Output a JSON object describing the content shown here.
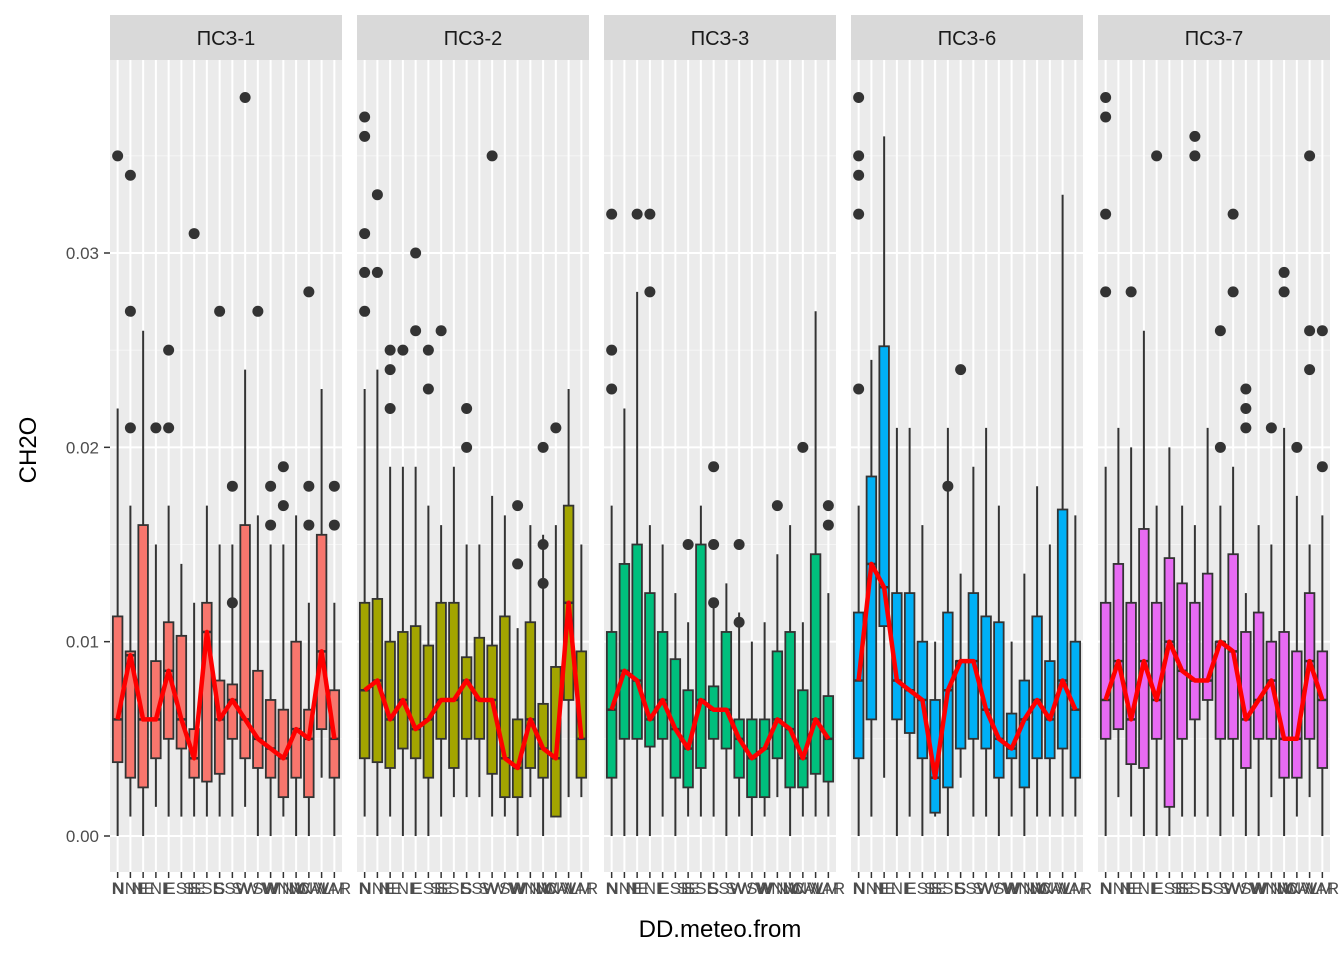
{
  "chart_data": {
    "type": "boxplot",
    "title": "",
    "xlabel": "DD.meteo.from",
    "ylabel": "CH2O",
    "ylim": [
      -0.0018,
      0.0397
    ],
    "yticks": [
      0.0,
      0.01,
      0.02,
      0.03
    ],
    "ytick_labels": [
      "0.00",
      "0.01",
      "0.02",
      "0.03"
    ],
    "grid": true,
    "legend": "none",
    "overlay": "red line connecting medians per category",
    "line_color": "#ff0000",
    "categories": [
      "N",
      "NNE",
      "NE",
      "ENE",
      "E",
      "ESE",
      "SE",
      "SSE",
      "S",
      "SSW",
      "SW",
      "WSW",
      "W",
      "WNW",
      "NW",
      "NNW",
      "CALM",
      "VAR"
    ],
    "facets": [
      {
        "name": "ПСЗ-1",
        "fill": "#F8766D",
        "boxes": [
          {
            "lo": 0.0,
            "q1": 0.0038,
            "med": 0.006,
            "q3": 0.0113,
            "hi": 0.022,
            "out": [
              0.035
            ]
          },
          {
            "lo": 0.001,
            "q1": 0.003,
            "med": 0.0093,
            "q3": 0.0095,
            "hi": 0.017,
            "out": [
              0.034,
              0.027,
              0.021
            ]
          },
          {
            "lo": 0.0,
            "q1": 0.0025,
            "med": 0.006,
            "q3": 0.016,
            "hi": 0.026,
            "out": []
          },
          {
            "lo": 0.0015,
            "q1": 0.004,
            "med": 0.006,
            "q3": 0.009,
            "hi": 0.015,
            "out": [
              0.021
            ]
          },
          {
            "lo": 0.001,
            "q1": 0.005,
            "med": 0.0085,
            "q3": 0.011,
            "hi": 0.017,
            "out": [
              0.025,
              0.021
            ]
          },
          {
            "lo": 0.001,
            "q1": 0.0045,
            "med": 0.006,
            "q3": 0.0103,
            "hi": 0.014,
            "out": []
          },
          {
            "lo": 0.001,
            "q1": 0.003,
            "med": 0.004,
            "q3": 0.0055,
            "hi": 0.012,
            "out": [
              0.031
            ]
          },
          {
            "lo": 0.001,
            "q1": 0.0028,
            "med": 0.0105,
            "q3": 0.012,
            "hi": 0.017,
            "out": []
          },
          {
            "lo": 0.001,
            "q1": 0.0032,
            "med": 0.006,
            "q3": 0.008,
            "hi": 0.015,
            "out": [
              0.027
            ]
          },
          {
            "lo": 0.001,
            "q1": 0.005,
            "med": 0.007,
            "q3": 0.0078,
            "hi": 0.015,
            "out": [
              0.018,
              0.012
            ]
          },
          {
            "lo": 0.0015,
            "q1": 0.004,
            "med": 0.006,
            "q3": 0.016,
            "hi": 0.024,
            "out": [
              0.038
            ]
          },
          {
            "lo": 0.0,
            "q1": 0.0035,
            "med": 0.005,
            "q3": 0.0085,
            "hi": 0.0165,
            "out": [
              0.027
            ]
          },
          {
            "lo": 0.0,
            "q1": 0.003,
            "med": 0.0045,
            "q3": 0.007,
            "hi": 0.015,
            "out": [
              0.018,
              0.016
            ]
          },
          {
            "lo": 0.001,
            "q1": 0.002,
            "med": 0.004,
            "q3": 0.0065,
            "hi": 0.015,
            "out": [
              0.019,
              0.017
            ]
          },
          {
            "lo": 0.0,
            "q1": 0.003,
            "med": 0.0055,
            "q3": 0.01,
            "hi": 0.0165,
            "out": []
          },
          {
            "lo": 0.0,
            "q1": 0.002,
            "med": 0.005,
            "q3": 0.0065,
            "hi": 0.012,
            "out": [
              0.028,
              0.018,
              0.016
            ]
          },
          {
            "lo": 0.003,
            "q1": 0.0055,
            "med": 0.0095,
            "q3": 0.0155,
            "hi": 0.023,
            "out": []
          },
          {
            "lo": 0.0,
            "q1": 0.003,
            "med": 0.005,
            "q3": 0.0075,
            "hi": 0.012,
            "out": [
              0.018,
              0.016
            ]
          }
        ]
      },
      {
        "name": "ПСЗ-2",
        "fill": "#A3A500",
        "boxes": [
          {
            "lo": 0.001,
            "q1": 0.004,
            "med": 0.0075,
            "q3": 0.012,
            "hi": 0.023,
            "out": [
              0.037,
              0.036,
              0.031,
              0.029,
              0.027
            ]
          },
          {
            "lo": 0.0,
            "q1": 0.0038,
            "med": 0.008,
            "q3": 0.0122,
            "hi": 0.024,
            "out": [
              0.033,
              0.029
            ]
          },
          {
            "lo": 0.001,
            "q1": 0.0035,
            "med": 0.006,
            "q3": 0.01,
            "hi": 0.019,
            "out": [
              0.025,
              0.024,
              0.022
            ]
          },
          {
            "lo": 0.0,
            "q1": 0.0045,
            "med": 0.007,
            "q3": 0.0105,
            "hi": 0.019,
            "out": [
              0.025
            ]
          },
          {
            "lo": 0.0,
            "q1": 0.004,
            "med": 0.0055,
            "q3": 0.0108,
            "hi": 0.019,
            "out": [
              0.03,
              0.026
            ]
          },
          {
            "lo": 0.0,
            "q1": 0.003,
            "med": 0.006,
            "q3": 0.0098,
            "hi": 0.017,
            "out": [
              0.025,
              0.023
            ]
          },
          {
            "lo": 0.001,
            "q1": 0.005,
            "med": 0.007,
            "q3": 0.012,
            "hi": 0.016,
            "out": [
              0.026
            ]
          },
          {
            "lo": 0.002,
            "q1": 0.0035,
            "med": 0.007,
            "q3": 0.012,
            "hi": 0.019,
            "out": []
          },
          {
            "lo": 0.002,
            "q1": 0.005,
            "med": 0.008,
            "q3": 0.0092,
            "hi": 0.015,
            "out": [
              0.022,
              0.02
            ]
          },
          {
            "lo": 0.002,
            "q1": 0.005,
            "med": 0.007,
            "q3": 0.0102,
            "hi": 0.015,
            "out": []
          },
          {
            "lo": 0.001,
            "q1": 0.0032,
            "med": 0.007,
            "q3": 0.0098,
            "hi": 0.0175,
            "out": [
              0.035
            ]
          },
          {
            "lo": 0.001,
            "q1": 0.002,
            "med": 0.004,
            "q3": 0.0113,
            "hi": 0.0165,
            "out": []
          },
          {
            "lo": 0.0,
            "q1": 0.002,
            "med": 0.0035,
            "q3": 0.006,
            "hi": 0.0107,
            "out": [
              0.017,
              0.014
            ]
          },
          {
            "lo": 0.002,
            "q1": 0.0035,
            "med": 0.006,
            "q3": 0.011,
            "hi": 0.016,
            "out": []
          },
          {
            "lo": 0.0,
            "q1": 0.003,
            "med": 0.0045,
            "q3": 0.0068,
            "hi": 0.0155,
            "out": [
              0.02,
              0.015,
              0.013
            ]
          },
          {
            "lo": 0.001,
            "q1": 0.001,
            "med": 0.004,
            "q3": 0.0087,
            "hi": 0.016,
            "out": [
              0.021
            ]
          },
          {
            "lo": 0.002,
            "q1": 0.007,
            "med": 0.012,
            "q3": 0.017,
            "hi": 0.023,
            "out": []
          },
          {
            "lo": 0.002,
            "q1": 0.003,
            "med": 0.005,
            "q3": 0.0095,
            "hi": 0.015,
            "out": []
          }
        ]
      },
      {
        "name": "ПСЗ-3",
        "fill": "#00BF7D",
        "boxes": [
          {
            "lo": 0.0,
            "q1": 0.003,
            "med": 0.0065,
            "q3": 0.0105,
            "hi": 0.017,
            "out": [
              0.032,
              0.025,
              0.023
            ]
          },
          {
            "lo": 0.0,
            "q1": 0.005,
            "med": 0.0085,
            "q3": 0.014,
            "hi": 0.022,
            "out": []
          },
          {
            "lo": 0.0,
            "q1": 0.005,
            "med": 0.008,
            "q3": 0.015,
            "hi": 0.028,
            "out": [
              0.032
            ]
          },
          {
            "lo": 0.0,
            "q1": 0.0046,
            "med": 0.006,
            "q3": 0.0125,
            "hi": 0.016,
            "out": [
              0.032,
              0.028
            ]
          },
          {
            "lo": 0.001,
            "q1": 0.005,
            "med": 0.007,
            "q3": 0.0105,
            "hi": 0.015,
            "out": []
          },
          {
            "lo": 0.0,
            "q1": 0.003,
            "med": 0.0055,
            "q3": 0.0091,
            "hi": 0.0125,
            "out": []
          },
          {
            "lo": 0.001,
            "q1": 0.0025,
            "med": 0.0045,
            "q3": 0.0075,
            "hi": 0.011,
            "out": [
              0.015
            ]
          },
          {
            "lo": 0.001,
            "q1": 0.0035,
            "med": 0.007,
            "q3": 0.015,
            "hi": 0.017,
            "out": []
          },
          {
            "lo": 0.001,
            "q1": 0.005,
            "med": 0.0065,
            "q3": 0.0077,
            "hi": 0.012,
            "out": [
              0.019,
              0.015,
              0.012
            ]
          },
          {
            "lo": 0.0,
            "q1": 0.0045,
            "med": 0.0065,
            "q3": 0.0105,
            "hi": 0.013,
            "out": []
          },
          {
            "lo": 0.001,
            "q1": 0.003,
            "med": 0.005,
            "q3": 0.006,
            "hi": 0.0115,
            "out": [
              0.015,
              0.011
            ]
          },
          {
            "lo": 0.0,
            "q1": 0.002,
            "med": 0.004,
            "q3": 0.006,
            "hi": 0.01,
            "out": []
          },
          {
            "lo": 0.001,
            "q1": 0.002,
            "med": 0.0045,
            "q3": 0.006,
            "hi": 0.011,
            "out": []
          },
          {
            "lo": 0.002,
            "q1": 0.004,
            "med": 0.006,
            "q3": 0.0095,
            "hi": 0.0145,
            "out": [
              0.017
            ]
          },
          {
            "lo": 0.0,
            "q1": 0.0025,
            "med": 0.0055,
            "q3": 0.0105,
            "hi": 0.016,
            "out": []
          },
          {
            "lo": 0.001,
            "q1": 0.0025,
            "med": 0.004,
            "q3": 0.0075,
            "hi": 0.011,
            "out": [
              0.02
            ]
          },
          {
            "lo": 0.001,
            "q1": 0.0032,
            "med": 0.006,
            "q3": 0.0145,
            "hi": 0.027,
            "out": []
          },
          {
            "lo": 0.001,
            "q1": 0.0028,
            "med": 0.005,
            "q3": 0.0072,
            "hi": 0.0125,
            "out": [
              0.017,
              0.016
            ]
          }
        ]
      },
      {
        "name": "ПСЗ-6",
        "fill": "#00B0F6",
        "boxes": [
          {
            "lo": 0.0,
            "q1": 0.004,
            "med": 0.008,
            "q3": 0.0115,
            "hi": 0.017,
            "out": [
              0.038,
              0.035,
              0.034,
              0.032,
              0.023
            ]
          },
          {
            "lo": 0.001,
            "q1": 0.006,
            "med": 0.014,
            "q3": 0.0185,
            "hi": 0.0245,
            "out": []
          },
          {
            "lo": 0.003,
            "q1": 0.0108,
            "med": 0.0128,
            "q3": 0.0252,
            "hi": 0.036,
            "out": []
          },
          {
            "lo": 0.0,
            "q1": 0.006,
            "med": 0.008,
            "q3": 0.0125,
            "hi": 0.021,
            "out": []
          },
          {
            "lo": 0.001,
            "q1": 0.0053,
            "med": 0.0075,
            "q3": 0.0125,
            "hi": 0.021,
            "out": []
          },
          {
            "lo": 0.0,
            "q1": 0.004,
            "med": 0.007,
            "q3": 0.01,
            "hi": 0.016,
            "out": []
          },
          {
            "lo": 0.001,
            "q1": 0.0012,
            "med": 0.003,
            "q3": 0.007,
            "hi": 0.01,
            "out": []
          },
          {
            "lo": 0.0,
            "q1": 0.0025,
            "med": 0.0075,
            "q3": 0.0115,
            "hi": 0.021,
            "out": [
              0.018
            ]
          },
          {
            "lo": 0.003,
            "q1": 0.0045,
            "med": 0.009,
            "q3": 0.009,
            "hi": 0.0135,
            "out": [
              0.024
            ]
          },
          {
            "lo": 0.001,
            "q1": 0.005,
            "med": 0.009,
            "q3": 0.0125,
            "hi": 0.019,
            "out": []
          },
          {
            "lo": 0.001,
            "q1": 0.0045,
            "med": 0.0065,
            "q3": 0.0113,
            "hi": 0.021,
            "out": []
          },
          {
            "lo": 0.0,
            "q1": 0.003,
            "med": 0.005,
            "q3": 0.011,
            "hi": 0.017,
            "out": []
          },
          {
            "lo": 0.001,
            "q1": 0.004,
            "med": 0.0045,
            "q3": 0.0063,
            "hi": 0.01,
            "out": []
          },
          {
            "lo": 0.0,
            "q1": 0.0025,
            "med": 0.006,
            "q3": 0.008,
            "hi": 0.0135,
            "out": []
          },
          {
            "lo": 0.001,
            "q1": 0.004,
            "med": 0.007,
            "q3": 0.0113,
            "hi": 0.018,
            "out": []
          },
          {
            "lo": 0.001,
            "q1": 0.004,
            "med": 0.006,
            "q3": 0.009,
            "hi": 0.015,
            "out": []
          },
          {
            "lo": 0.001,
            "q1": 0.0045,
            "med": 0.008,
            "q3": 0.0168,
            "hi": 0.033,
            "out": []
          },
          {
            "lo": 0.001,
            "q1": 0.003,
            "med": 0.0065,
            "q3": 0.01,
            "hi": 0.0165,
            "out": []
          }
        ]
      },
      {
        "name": "ПСЗ-7",
        "fill": "#E76BF3",
        "boxes": [
          {
            "lo": 0.0,
            "q1": 0.005,
            "med": 0.007,
            "q3": 0.012,
            "hi": 0.019,
            "out": [
              0.038,
              0.037,
              0.032,
              0.028
            ]
          },
          {
            "lo": 0.002,
            "q1": 0.0055,
            "med": 0.009,
            "q3": 0.014,
            "hi": 0.021,
            "out": []
          },
          {
            "lo": 0.001,
            "q1": 0.0037,
            "med": 0.006,
            "q3": 0.012,
            "hi": 0.02,
            "out": [
              0.028
            ]
          },
          {
            "lo": 0.0,
            "q1": 0.0035,
            "med": 0.009,
            "q3": 0.0158,
            "hi": 0.026,
            "out": []
          },
          {
            "lo": 0.0,
            "q1": 0.005,
            "med": 0.007,
            "q3": 0.012,
            "hi": 0.017,
            "out": [
              0.035
            ]
          },
          {
            "lo": 0.0,
            "q1": 0.0015,
            "med": 0.01,
            "q3": 0.0143,
            "hi": 0.02,
            "out": []
          },
          {
            "lo": 0.001,
            "q1": 0.005,
            "med": 0.0085,
            "q3": 0.013,
            "hi": 0.017,
            "out": []
          },
          {
            "lo": 0.001,
            "q1": 0.006,
            "med": 0.008,
            "q3": 0.012,
            "hi": 0.016,
            "out": [
              0.036,
              0.035
            ]
          },
          {
            "lo": 0.001,
            "q1": 0.007,
            "med": 0.008,
            "q3": 0.0135,
            "hi": 0.021,
            "out": []
          },
          {
            "lo": 0.0,
            "q1": 0.005,
            "med": 0.01,
            "q3": 0.01,
            "hi": 0.017,
            "out": [
              0.026,
              0.02
            ]
          },
          {
            "lo": 0.001,
            "q1": 0.005,
            "med": 0.0095,
            "q3": 0.0145,
            "hi": 0.019,
            "out": [
              0.032,
              0.028
            ]
          },
          {
            "lo": 0.0,
            "q1": 0.0035,
            "med": 0.006,
            "q3": 0.0105,
            "hi": 0.0125,
            "out": [
              0.023,
              0.022,
              0.021
            ]
          },
          {
            "lo": 0.0,
            "q1": 0.005,
            "med": 0.007,
            "q3": 0.0115,
            "hi": 0.016,
            "out": []
          },
          {
            "lo": 0.002,
            "q1": 0.005,
            "med": 0.008,
            "q3": 0.01,
            "hi": 0.015,
            "out": [
              0.021
            ]
          },
          {
            "lo": 0.0,
            "q1": 0.003,
            "med": 0.005,
            "q3": 0.0105,
            "hi": 0.021,
            "out": [
              0.029,
              0.028
            ]
          },
          {
            "lo": 0.001,
            "q1": 0.003,
            "med": 0.005,
            "q3": 0.0095,
            "hi": 0.0175,
            "out": [
              0.02
            ]
          },
          {
            "lo": 0.002,
            "q1": 0.005,
            "med": 0.009,
            "q3": 0.0125,
            "hi": 0.015,
            "out": [
              0.035,
              0.026,
              0.024
            ]
          },
          {
            "lo": 0.0,
            "q1": 0.0035,
            "med": 0.007,
            "q3": 0.0095,
            "hi": 0.0165,
            "out": [
              0.026,
              0.019
            ]
          }
        ]
      }
    ]
  }
}
